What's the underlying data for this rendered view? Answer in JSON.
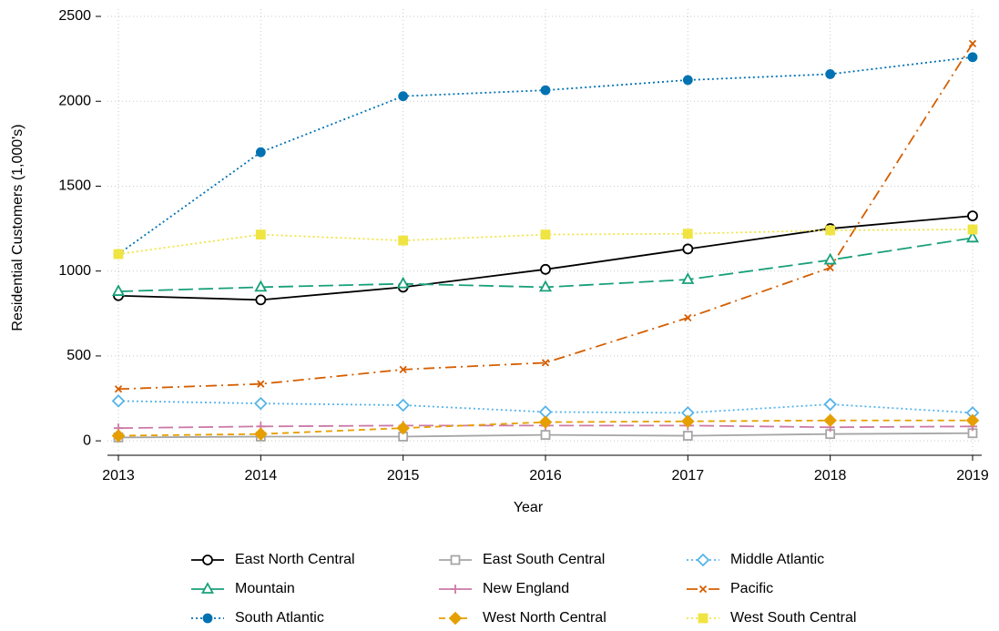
{
  "chart_data": {
    "type": "line",
    "x_label": "Year",
    "y_label": "Residential Customers (1,000's)",
    "x": [
      2013,
      2014,
      2015,
      2016,
      2017,
      2018,
      2019
    ],
    "xlim": [
      2013,
      2019
    ],
    "xticks": [
      2013,
      2014,
      2015,
      2016,
      2017,
      2018,
      2019
    ],
    "ylim": [
      -85,
      2500
    ],
    "yticks": [
      0,
      500,
      1000,
      1500,
      2000,
      2500
    ],
    "grid": true,
    "legend": "bottom",
    "series": [
      {
        "name": "East North Central",
        "color": "#000000",
        "marker": "circle",
        "filled": false,
        "line_style": "solid",
        "values": [
          855,
          830,
          905,
          1010,
          1130,
          1250,
          1325
        ]
      },
      {
        "name": "East South Central",
        "color": "#a6a6a6",
        "marker": "square",
        "filled": false,
        "line_style": "solid",
        "values": [
          20,
          25,
          25,
          35,
          30,
          40,
          45
        ]
      },
      {
        "name": "Middle Atlantic",
        "color": "#56b4e9",
        "marker": "diamond",
        "filled": false,
        "line_style": "dotted",
        "values": [
          235,
          220,
          210,
          170,
          165,
          215,
          165
        ]
      },
      {
        "name": "Mountain",
        "color": "#17a07a",
        "marker": "triangle",
        "filled": false,
        "line_style": "longdash",
        "values": [
          880,
          905,
          925,
          905,
          950,
          1065,
          1195
        ]
      },
      {
        "name": "New England",
        "color": "#cc79a7",
        "marker": "plus",
        "filled": false,
        "line_style": "longdash",
        "values": [
          75,
          85,
          90,
          90,
          90,
          80,
          85
        ]
      },
      {
        "name": "Pacific",
        "color": "#d55e00",
        "marker": "x",
        "filled": false,
        "line_style": "dashdot",
        "values": [
          305,
          335,
          420,
          460,
          725,
          1020,
          2340
        ]
      },
      {
        "name": "South Atlantic",
        "color": "#0072b2",
        "marker": "circle",
        "filled": true,
        "line_style": "dotted",
        "values": [
          1100,
          1700,
          2030,
          2065,
          2125,
          2160,
          2260
        ]
      },
      {
        "name": "West North Central",
        "color": "#e69f00",
        "marker": "diamond",
        "filled": true,
        "line_style": "dashed",
        "values": [
          30,
          40,
          75,
          110,
          115,
          120,
          120
        ]
      },
      {
        "name": "West South Central",
        "color": "#f0e442",
        "marker": "square",
        "filled": true,
        "line_style": "dotted",
        "values": [
          1100,
          1215,
          1180,
          1215,
          1220,
          1240,
          1245
        ]
      }
    ]
  }
}
